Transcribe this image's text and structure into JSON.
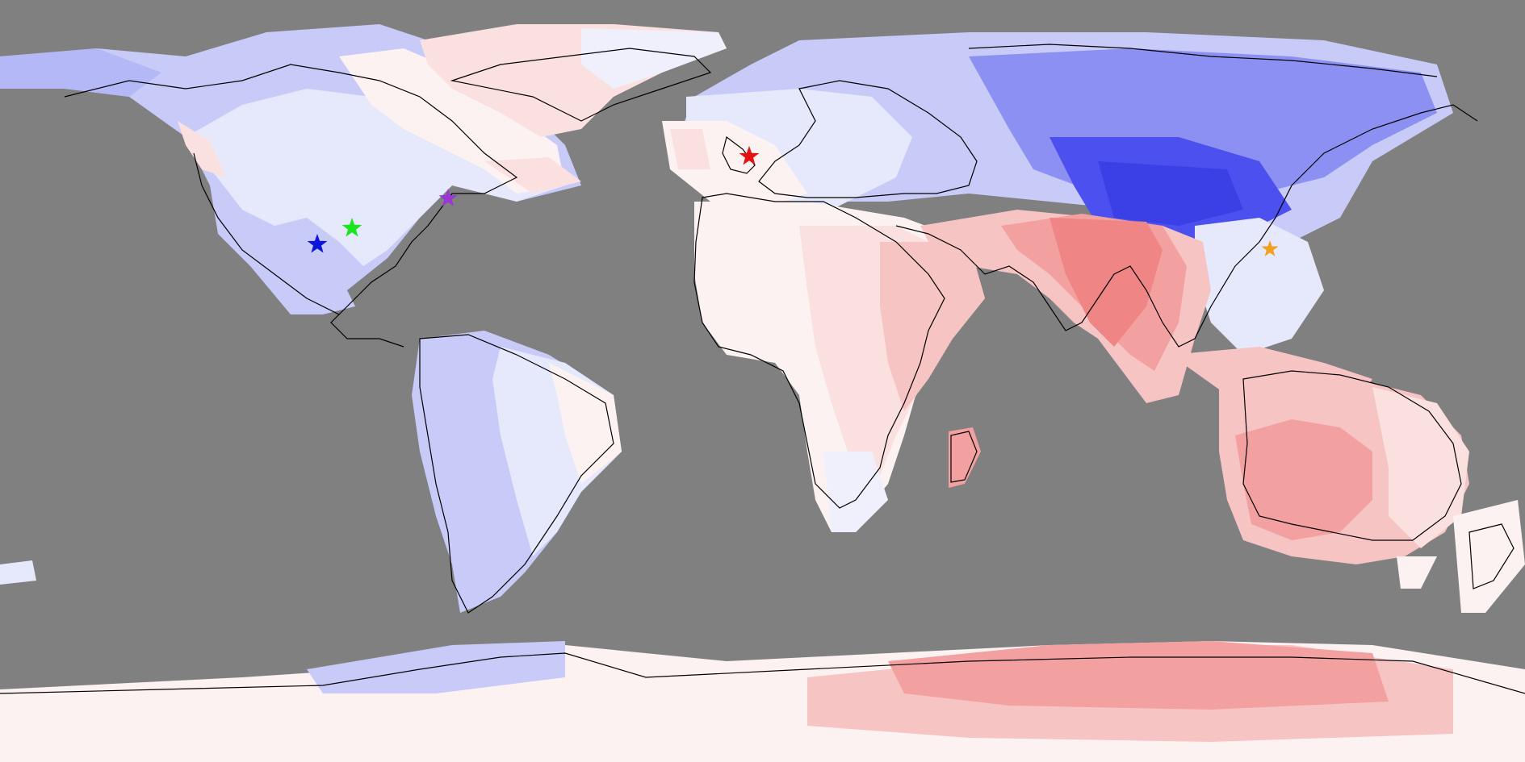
{
  "map": {
    "background": "#808080",
    "projection": "equirectangular",
    "palette": {
      "cold_strong": "#4b50ee",
      "cold_mid": "#8c90f2",
      "cold_light": "#c8caf8",
      "cold_faint": "#e6e8fc",
      "neutral": "#fdf2f2",
      "warm_faint": "#fbe0e0",
      "warm_light": "#f7c4c4",
      "warm_mid": "#f3a0a0",
      "warm_strong": "#ef8585"
    },
    "markers": [
      {
        "id": "marker-blue",
        "color": "#0b14d8",
        "shape": "star"
      },
      {
        "id": "marker-green",
        "color": "#19e61d",
        "shape": "star"
      },
      {
        "id": "marker-purple",
        "color": "#9a35d6",
        "shape": "star"
      },
      {
        "id": "marker-red",
        "color": "#e31313",
        "shape": "star"
      },
      {
        "id": "marker-orange",
        "color": "#f0a01a",
        "shape": "star"
      }
    ]
  }
}
